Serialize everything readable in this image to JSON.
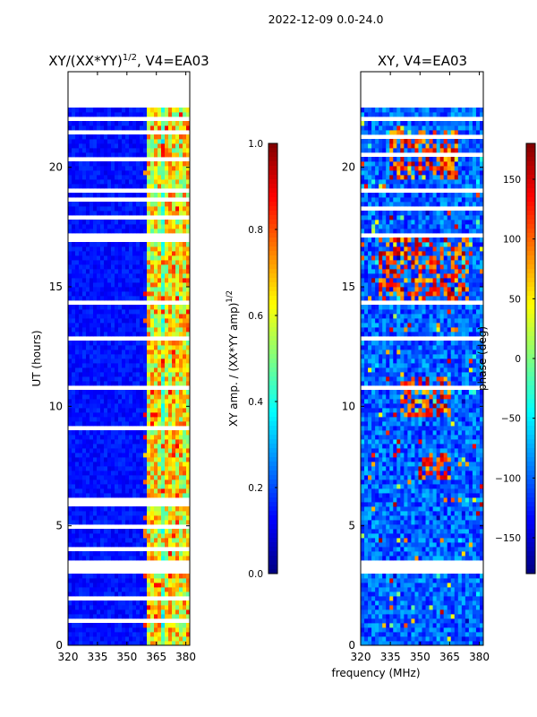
{
  "suptitle": "2022-12-09 0.0-24.0",
  "colors": {
    "jet": [
      "#00007f",
      "#0000ff",
      "#007fff",
      "#00ffff",
      "#7fff7f",
      "#ffff00",
      "#ff7f00",
      "#ff0000",
      "#7f0000"
    ],
    "frame": "#000000",
    "background": "#ffffff"
  },
  "chart_data": [
    {
      "type": "heatmap",
      "title": "XY/(XX*YY)",
      "title_exponent": "1/2",
      "title_suffix": ", V4=EA03",
      "xlim": [
        320,
        382
      ],
      "ylim": [
        0,
        24
      ],
      "xticks": [
        320,
        335,
        350,
        365,
        380
      ],
      "yticks": [
        0,
        5,
        10,
        15,
        20
      ],
      "ylabel": "UT (hours)",
      "xlabel": "",
      "data_ymax": 22.5,
      "value_profile": "low amplitude (about 0.1) over 320-359 MHz, elevated bands (0.4-0.9) at about 362, 366, 370, 373, 377 and 380 MHz",
      "gaps_hours": [
        [
          3.0,
          3.5
        ],
        [
          5.9,
          6.1
        ],
        [
          12.7,
          12.9
        ],
        [
          14.2,
          14.5
        ],
        [
          16.9,
          17.3
        ],
        [
          20.3,
          20.5
        ],
        [
          19.0,
          19.15
        ],
        [
          22.0,
          22.1
        ],
        [
          1.0,
          1.1
        ],
        [
          1.9,
          2.0
        ],
        [
          4.0,
          4.1
        ],
        [
          4.9,
          5.0
        ],
        [
          8.2,
          8.3
        ],
        [
          9.0,
          9.1
        ],
        [
          10.7,
          10.8
        ],
        [
          17.9,
          18.0
        ],
        [
          18.6,
          18.7
        ],
        [
          21.4,
          21.5
        ]
      ]
    },
    {
      "type": "heatmap",
      "title": "XY, V4=EA03",
      "xlim": [
        320,
        382
      ],
      "ylim": [
        0,
        24
      ],
      "xticks": [
        320,
        335,
        350,
        365,
        380
      ],
      "yticks": [
        0,
        5,
        10,
        15,
        20
      ],
      "xlabel": "frequency (MHz)",
      "data_ymax": 22.5,
      "value_profile": "phase in degrees, mostly -120 to -60 with patches near +100 to +150 around 14-17 h and 9-11 h",
      "gaps_hours": [
        [
          3.0,
          3.5
        ],
        [
          12.8,
          12.9
        ],
        [
          14.2,
          14.4
        ],
        [
          17.1,
          17.3
        ],
        [
          20.4,
          20.6
        ],
        [
          19.0,
          19.2
        ],
        [
          22.0,
          22.1
        ],
        [
          1.1,
          1.2
        ],
        [
          2.2,
          2.3
        ],
        [
          4.3,
          4.4
        ],
        [
          5.2,
          5.3
        ],
        [
          6.5,
          6.6
        ],
        [
          7.6,
          7.7
        ],
        [
          8.8,
          8.9
        ],
        [
          10.7,
          10.8
        ],
        [
          16.1,
          16.2
        ],
        [
          18.2,
          18.3
        ],
        [
          21.2,
          21.3
        ]
      ]
    },
    {
      "type": "colorbar",
      "label": "XY amp. / (XX*YY amp)",
      "label_exponent": "1/2",
      "vmin": 0.0,
      "vmax": 1.0,
      "ticks": [
        "0.0",
        "0.2",
        "0.4",
        "0.6",
        "0.8",
        "1.0"
      ],
      "tick_values": [
        0.0,
        0.2,
        0.4,
        0.6,
        0.8,
        1.0
      ]
    },
    {
      "type": "colorbar",
      "label": "phase (deg)",
      "vmin": -180,
      "vmax": 180,
      "ticks": [
        "−150",
        "−100",
        "−50",
        "0",
        "50",
        "100",
        "150"
      ],
      "tick_values": [
        -150,
        -100,
        -50,
        0,
        50,
        100,
        150
      ]
    }
  ]
}
